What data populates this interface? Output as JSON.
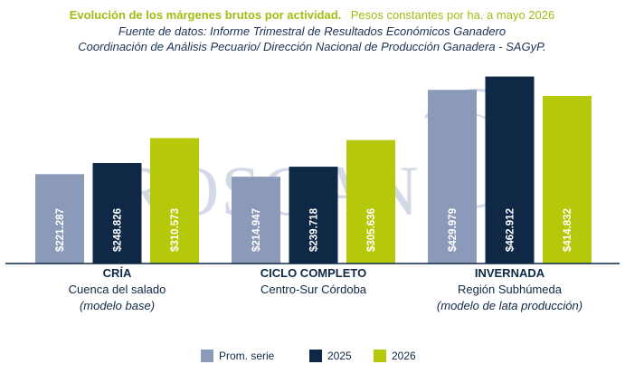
{
  "chart_data": {
    "type": "bar",
    "title": "Evolución de los márgenes brutos por actividad.",
    "subtitle": "Pesos constantes por ha. a mayo 2026",
    "source_lines": [
      "Fuente de datos: Informe Trimestral de Resultados Económicos Ganadero",
      "Coordinación de Análisis Pecuario/ Dirección Nacional de Producción Ganadera - SAGyP."
    ],
    "categories": [
      {
        "name": "CRÍA",
        "region": "Cuenca del salado",
        "note": "(modelo base)"
      },
      {
        "name": "CICLO COMPLETO",
        "region": "Centro-Sur Córdoba",
        "note": ""
      },
      {
        "name": "INVERNADA",
        "region": "Región Subhúmeda",
        "note": "(modelo de lata producción)"
      }
    ],
    "series": [
      {
        "name": "Prom. serie",
        "color": "#8a9ab8",
        "values": [
          221287,
          214947,
          429979
        ],
        "labels": [
          "$221.287",
          "$214.947",
          "$429.979"
        ]
      },
      {
        "name": "2025",
        "color": "#0e2846",
        "values": [
          248826,
          239718,
          462912
        ],
        "labels": [
          "$248.826",
          "$239.718",
          "$462.912"
        ]
      },
      {
        "name": "2026",
        "color": "#b5c80a",
        "values": [
          310573,
          305636,
          414832
        ],
        "labels": [
          "$310.573",
          "$305.636",
          "$414.832"
        ]
      }
    ],
    "ylim": [
      0,
      500000
    ],
    "grid": false,
    "legend_position": "bottom-center",
    "title_color": "#a5bb12",
    "text_color": "#0e2846",
    "axis_color": "#0e2846"
  },
  "watermark": {
    "text": "ROSGAN",
    "color": "#d3d9e6"
  }
}
